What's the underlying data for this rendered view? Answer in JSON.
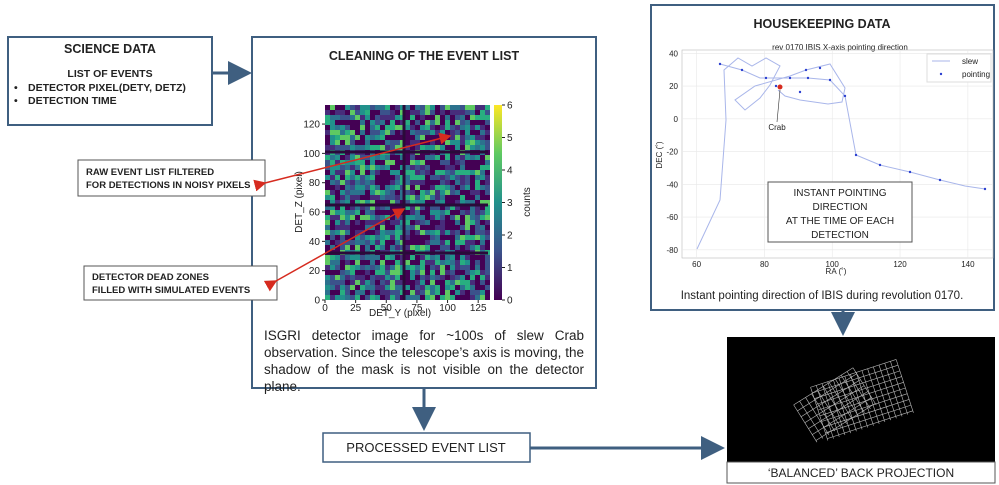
{
  "science": {
    "title": "SCIENCE DATA",
    "subtitle": "LIST OF EVENTS",
    "items": [
      "DETECTOR PIXEL(DETY, DETZ)",
      "DETECTION TIME"
    ]
  },
  "cleaning": {
    "title": "CLEANING OF THE EVENT LIST",
    "caption": "ISGRI detector image for ~100s of slew Crab observation. Since the telescope’s axis is moving, the shadow of the mask is not visible on the detector plane.",
    "image": {
      "xlabel": "DET_Y (pixel)",
      "ylabel": "DET_Z (pixel)",
      "colorbar_label": "counts",
      "xlim": [
        0,
        133
      ],
      "ylim": [
        0,
        133
      ],
      "clim": [
        0,
        6
      ],
      "xticks": [
        0,
        25,
        50,
        75,
        100,
        125
      ],
      "yticks": [
        0,
        20,
        40,
        60,
        80,
        100,
        120
      ],
      "cticks": [
        0,
        1,
        2,
        3,
        4,
        5,
        6
      ]
    }
  },
  "annotations": [
    "RAW EVENT LIST FILTERED FOR DETECTIONS IN NOISY PIXELS",
    "DETECTOR DEAD ZONES FILLED WITH SIMULATED EVENTS"
  ],
  "processed": "PROCESSED EVENT LIST",
  "housekeeping": {
    "title": "HOUSEKEEPING DATA",
    "plot": {
      "title": "rev 0170 IBIS X-axis pointing direction",
      "xlabel": "RA (˚)",
      "ylabel": "DEC (˚)",
      "xlim": [
        55.7,
        148
      ],
      "ylim": [
        -85,
        42
      ],
      "xticks": [
        60,
        80,
        100,
        120,
        140
      ],
      "yticks": [
        -80,
        -60,
        -40,
        -20,
        0,
        20,
        40
      ],
      "legend": [
        "slew",
        "pointing"
      ],
      "annotation": "Crab",
      "note": [
        "INSTANT POINTING",
        "DIRECTION",
        "AT THE TIME OF EACH",
        "DETECTION"
      ]
    },
    "caption": "Instant pointing direction of IBIS during revolution 0170."
  },
  "projection": {
    "caption": "‘BALANCED’ BACK PROJECTION"
  }
}
